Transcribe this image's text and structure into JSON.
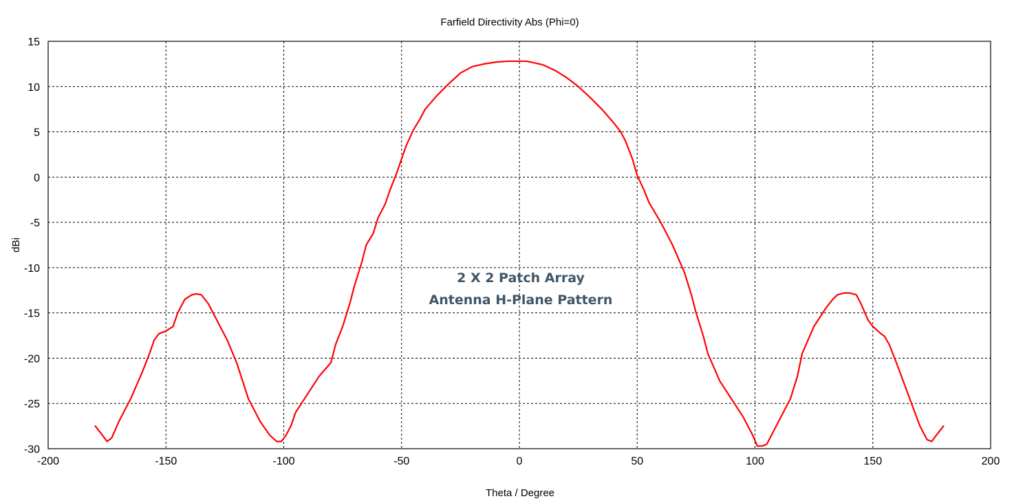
{
  "colors": {
    "series": "#ff0000",
    "annotation": "#3f5569",
    "grid": "#000000",
    "background": "#ffffff"
  },
  "chart_data": {
    "type": "line",
    "title": "Farfield Directivity Abs (Phi=0)",
    "xlabel": "Theta / Degree",
    "ylabel": "dBi",
    "xlim": [
      -200,
      200
    ],
    "ylim": [
      -30,
      15
    ],
    "xticks": [
      -200,
      -150,
      -100,
      -50,
      0,
      50,
      100,
      150,
      200
    ],
    "yticks": [
      -30,
      -25,
      -20,
      -15,
      -10,
      -5,
      0,
      5,
      10,
      15
    ],
    "grid": true,
    "annotation": [
      "2 X 2 Patch Array",
      "Antenna H-Plane Pattern"
    ],
    "series": [
      {
        "x": [
          -180,
          -177,
          -175,
          -173,
          -170,
          -165,
          -160,
          -157,
          -155,
          -153,
          -150,
          -147,
          -145,
          -142,
          -139,
          -137,
          -135,
          -132,
          -128,
          -124,
          -120,
          -115,
          -110,
          -106,
          -103,
          -101,
          -99,
          -97,
          -95,
          -90,
          -85,
          -80,
          -78,
          -75,
          -72,
          -70,
          -67,
          -65,
          -62,
          -60,
          -57,
          -55,
          -52,
          -50,
          -48,
          -45,
          -42,
          -40,
          -35,
          -30,
          -25,
          -20,
          -15,
          -10,
          -5,
          0,
          3,
          5,
          10,
          15,
          20,
          25,
          30,
          35,
          40,
          43,
          45,
          48,
          50,
          53,
          55,
          60,
          65,
          70,
          73,
          75,
          78,
          80,
          85,
          90,
          95,
          99,
          101,
          103,
          105,
          110,
          115,
          118,
          120,
          125,
          130,
          133,
          135,
          138,
          140,
          143,
          145,
          148,
          150,
          153,
          155,
          157,
          160,
          165,
          170,
          173,
          175,
          177,
          180
        ],
        "y": [
          -27.5,
          -28.5,
          -29.2,
          -28.8,
          -27,
          -24.5,
          -21.5,
          -19.5,
          -18,
          -17.3,
          -17,
          -16.5,
          -15,
          -13.5,
          -13,
          -12.9,
          -13,
          -14,
          -16,
          -18,
          -20.5,
          -24.5,
          -27,
          -28.5,
          -29.2,
          -29.2,
          -28.5,
          -27.5,
          -26,
          -24,
          -22,
          -20.5,
          -18.5,
          -16.5,
          -14,
          -12,
          -9.5,
          -7.5,
          -6.2,
          -4.5,
          -3,
          -1.5,
          0.5,
          2,
          3.5,
          5.2,
          6.5,
          7.5,
          9,
          10.3,
          11.5,
          12.2,
          12.5,
          12.7,
          12.8,
          12.8,
          12.8,
          12.7,
          12.4,
          11.8,
          11,
          10,
          8.8,
          7.5,
          6,
          5,
          4,
          2,
          0.2,
          -1.5,
          -2.8,
          -5,
          -7.5,
          -10.5,
          -13,
          -15,
          -17.5,
          -19.5,
          -22.5,
          -24.5,
          -26.5,
          -28.5,
          -29.7,
          -29.7,
          -29.5,
          -27,
          -24.5,
          -22,
          -19.5,
          -16.5,
          -14.5,
          -13.5,
          -13,
          -12.8,
          -12.8,
          -13,
          -14,
          -15.8,
          -16.5,
          -17.2,
          -17.6,
          -18.5,
          -20.5,
          -24,
          -27.5,
          -29,
          -29.2,
          -28.5,
          -27.5
        ]
      }
    ]
  }
}
